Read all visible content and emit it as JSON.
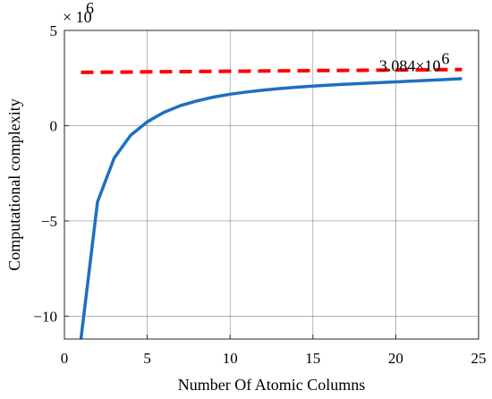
{
  "chart_data": {
    "type": "line",
    "xlabel": "Number Of Atomic Columns",
    "ylabel": "Computational complexity",
    "y_scale_label": "× 10",
    "y_scale_exponent": "6",
    "xlim": [
      0,
      25
    ],
    "ylim": [
      -11.2,
      5
    ],
    "x_ticks": [
      0,
      5,
      10,
      15,
      20,
      25
    ],
    "x_tick_labels": [
      "0",
      "5",
      "10",
      "15",
      "20",
      "25"
    ],
    "y_ticks": [
      -10,
      -5,
      0,
      5
    ],
    "y_tick_labels": [
      "−10",
      "−5",
      "0",
      "5"
    ],
    "grid": true,
    "annotation": {
      "mantissa": "3.084×10",
      "exponent": "6",
      "x": 19,
      "y": 3.15
    },
    "series": [
      {
        "style": "solid",
        "color": "#1f6fbf",
        "x": [
          1,
          2,
          3,
          4,
          5,
          6,
          7,
          8,
          9,
          10,
          11,
          12,
          13,
          14,
          15,
          16,
          17,
          18,
          19,
          20,
          21,
          22,
          23,
          24
        ],
        "y": [
          -11.2,
          -4.0,
          -1.7,
          -0.5,
          0.2,
          0.7,
          1.05,
          1.3,
          1.5,
          1.65,
          1.77,
          1.87,
          1.95,
          2.02,
          2.08,
          2.13,
          2.18,
          2.22,
          2.26,
          2.3,
          2.34,
          2.38,
          2.42,
          2.47
        ]
      },
      {
        "style": "dashed",
        "color": "#ff0000",
        "x": [
          1,
          24
        ],
        "y": [
          2.8,
          2.95
        ]
      }
    ]
  }
}
